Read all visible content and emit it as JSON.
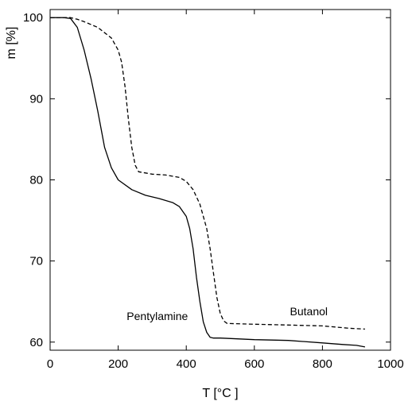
{
  "chart_data": {
    "type": "line",
    "xlabel": "T [°C ]",
    "ylabel": "m [%]",
    "xlim": [
      0,
      1000
    ],
    "ylim": [
      59,
      101
    ],
    "xticks": [
      0,
      200,
      400,
      600,
      800,
      1000
    ],
    "yticks": [
      60,
      70,
      80,
      90,
      100
    ],
    "grid": false,
    "series": [
      {
        "name": "Pentylamine",
        "style": "solid",
        "color": "#000000",
        "x": [
          0,
          40,
          60,
          80,
          100,
          120,
          140,
          160,
          180,
          200,
          240,
          280,
          320,
          360,
          380,
          400,
          410,
          420,
          430,
          440,
          450,
          460,
          470,
          480,
          500,
          600,
          700,
          800,
          860,
          900,
          925
        ],
        "y": [
          100.0,
          100.0,
          99.9,
          98.8,
          96.0,
          92.5,
          88.5,
          84.0,
          81.5,
          80.0,
          78.8,
          78.1,
          77.7,
          77.2,
          76.7,
          75.5,
          74.0,
          71.5,
          68.0,
          65.0,
          62.5,
          61.2,
          60.6,
          60.5,
          60.5,
          60.3,
          60.2,
          59.9,
          59.7,
          59.6,
          59.4
        ]
      },
      {
        "name": "Butanol",
        "style": "dashed",
        "color": "#000000",
        "x": [
          0,
          60,
          80,
          100,
          140,
          180,
          200,
          210,
          220,
          230,
          240,
          250,
          260,
          300,
          340,
          380,
          400,
          420,
          440,
          460,
          470,
          480,
          490,
          500,
          510,
          520,
          600,
          700,
          800,
          880,
          925
        ],
        "y": [
          100.0,
          100.0,
          99.8,
          99.5,
          98.8,
          97.5,
          96.0,
          94.5,
          91.5,
          87.5,
          84.0,
          81.8,
          81.0,
          80.7,
          80.6,
          80.3,
          79.8,
          78.8,
          77.0,
          74.0,
          71.5,
          68.5,
          65.5,
          63.5,
          62.6,
          62.3,
          62.2,
          62.1,
          62.0,
          61.7,
          61.6
        ]
      }
    ],
    "annotations": [
      {
        "text": "Pentylamine",
        "x": 315,
        "y": 62.7
      },
      {
        "text": "Butanol",
        "x": 760,
        "y": 63.3
      }
    ]
  }
}
